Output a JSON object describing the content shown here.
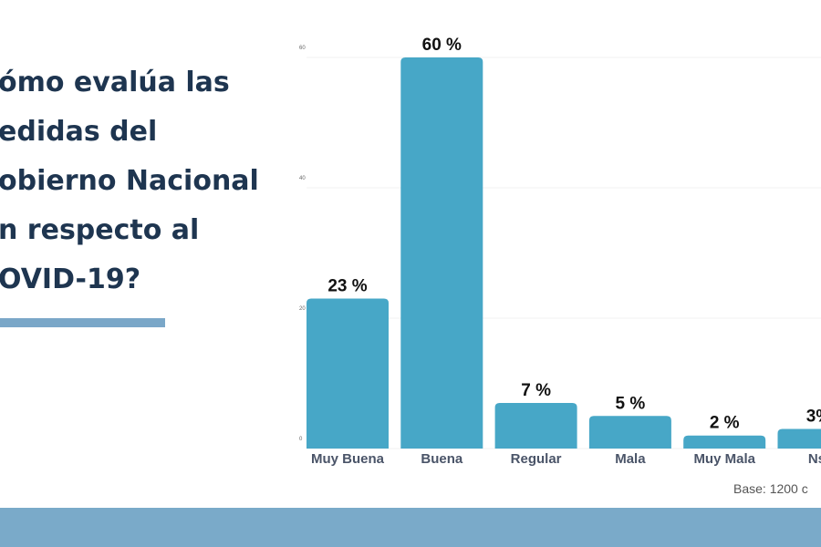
{
  "title_lines": [
    "ómo evalúa las",
    "edidas del",
    "obierno Nacional",
    "n respecto al",
    "OVID-19?"
  ],
  "base_note": "Base:  1200 c",
  "colors": {
    "bar": "#47a7c7",
    "title": "#1e3550",
    "accent": "#7aa7c8",
    "band": "#7aaac9"
  },
  "chart_data": {
    "type": "bar",
    "categories": [
      "Muy Buena",
      "Buena",
      "Regular",
      "Mala",
      "Muy Mala",
      "Ns/"
    ],
    "values": [
      23,
      60,
      7,
      5,
      2,
      3
    ],
    "data_labels": [
      "23 %",
      "60 %",
      "7 %",
      "5 %",
      "2 %",
      "3%"
    ],
    "ylim": [
      0,
      60
    ],
    "yticks": [
      0,
      20,
      40,
      60
    ],
    "grid": true
  }
}
